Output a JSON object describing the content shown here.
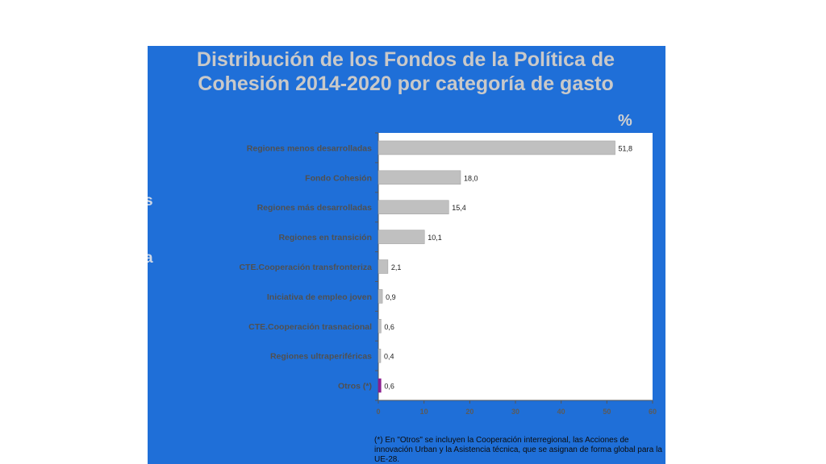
{
  "title": {
    "line1": "Distribución de los Fondos de la Política de",
    "line2": "Cohesión 2014-2020 por categoría de gasto"
  },
  "unit_label": "%",
  "left_fragments": [
    "s",
    "a"
  ],
  "footnote": "(*) En \"Otros\" se incluyen la Cooperación interregional, las Acciones de innovación Urban y la Asistencia técnica, que se asignan de forma global para  la UE-28.",
  "colors": {
    "background": "#1f6fd8",
    "bar": "#c0c0c0",
    "highlight_bar": "#8b1f8f",
    "title": "#c9c9c9"
  },
  "chart_data": {
    "type": "bar",
    "orientation": "horizontal",
    "categories": [
      "Regiones menos desarrolladas",
      "Fondo Cohesión",
      "Regiones más desarrolladas",
      "Regiones en transición",
      "CTE.Cooperación transfronteriza",
      "Iniciativa de empleo joven",
      "CTE.Cooperación trasnacional",
      "Regiones ultraperiféricas",
      "Otros (*)"
    ],
    "values": [
      51.8,
      18.0,
      15.4,
      10.1,
      2.1,
      0.9,
      0.6,
      0.4,
      0.6
    ],
    "value_labels": [
      "51,8",
      "18,0",
      "15,4",
      "10,1",
      "2,1",
      "0,9",
      "0,6",
      "0,4",
      "0,6"
    ],
    "highlight_index": 8,
    "xlim": [
      0,
      60
    ],
    "xticks": [
      0,
      10,
      20,
      30,
      40,
      50,
      60
    ],
    "ylabel": "%",
    "grid": false
  }
}
